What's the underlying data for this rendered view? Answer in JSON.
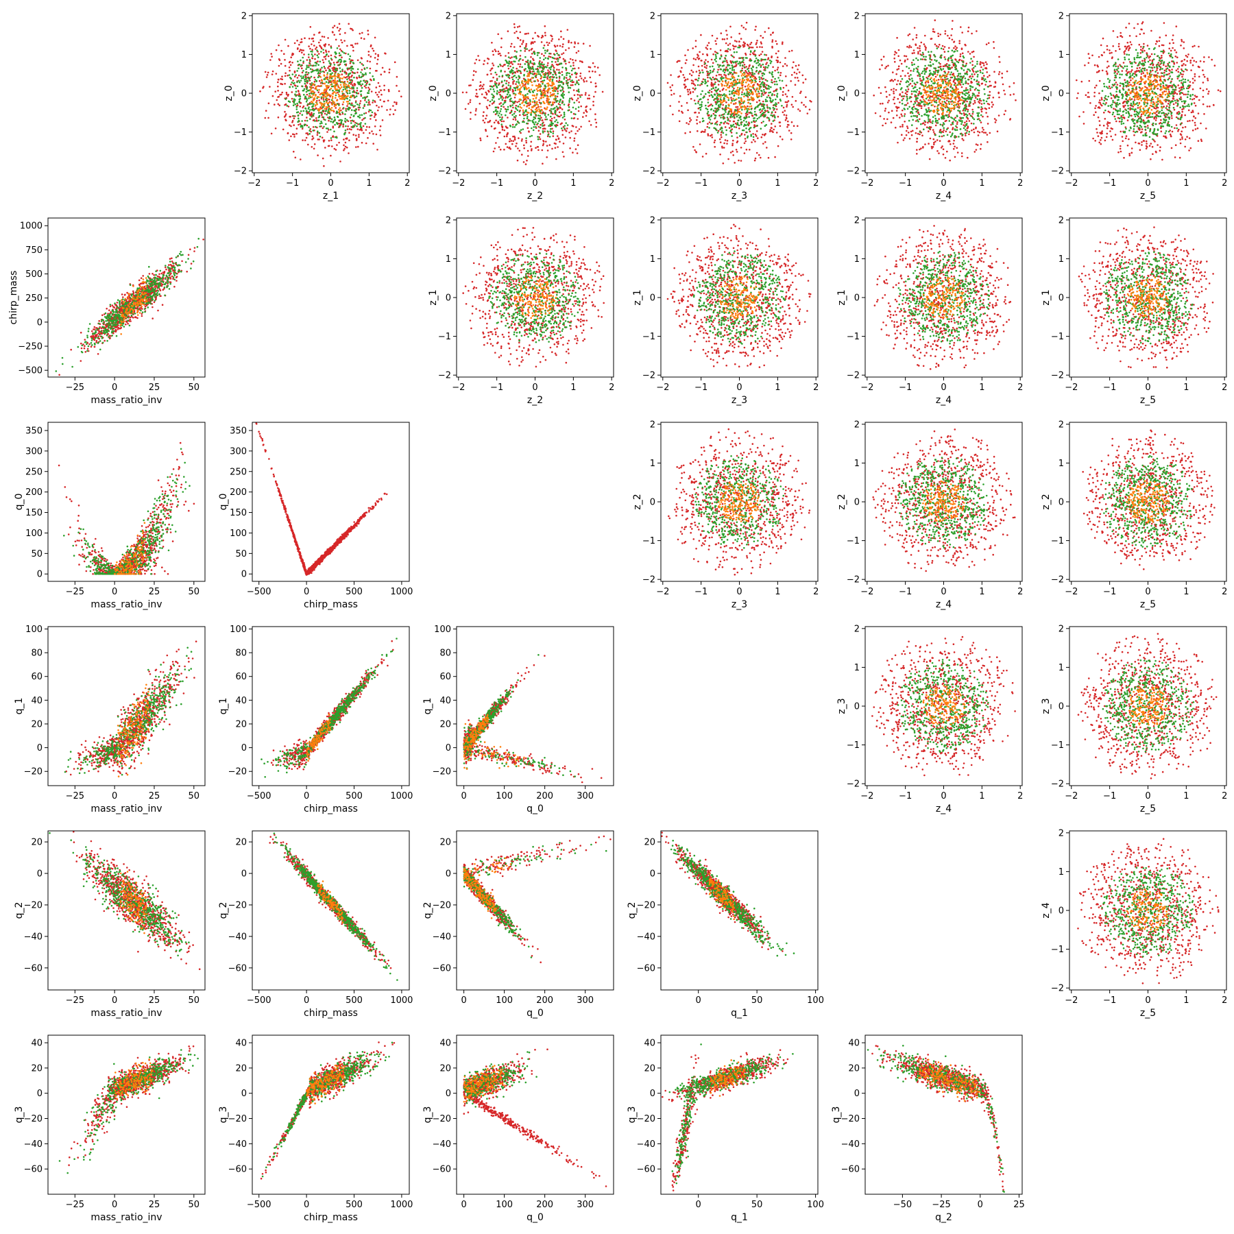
{
  "chart_data": {
    "type": "scatter",
    "layout": "corner-pair-grid",
    "grid_size": 6,
    "point_series": [
      {
        "color": "#d62728"
      },
      {
        "color": "#2ca02c"
      },
      {
        "color": "#ff7f0e"
      }
    ],
    "variables": {
      "z_0": {
        "label": "z_0",
        "lim": [
          -2.05,
          2.05
        ],
        "ticks": [
          -2,
          -1,
          0,
          1,
          2
        ]
      },
      "z_1": {
        "label": "z_1",
        "lim": [
          -2.05,
          2.05
        ],
        "ticks": [
          -2,
          -1,
          0,
          1,
          2
        ]
      },
      "z_2": {
        "label": "z_2",
        "lim": [
          -2.05,
          2.05
        ],
        "ticks": [
          -2,
          -1,
          0,
          1,
          2
        ]
      },
      "z_3": {
        "label": "z_3",
        "lim": [
          -2.05,
          2.05
        ],
        "ticks": [
          -2,
          -1,
          0,
          1,
          2
        ]
      },
      "z_4": {
        "label": "z_4",
        "lim": [
          -2.05,
          2.05
        ],
        "ticks": [
          -2,
          -1,
          0,
          1,
          2
        ]
      },
      "z_5": {
        "label": "z_5",
        "lim": [
          -2.05,
          2.05
        ],
        "ticks": [
          -2,
          -1,
          0,
          1,
          2
        ]
      },
      "mass_ratio_inv": {
        "label": "mass_ratio_inv",
        "lim": [
          -42,
          57
        ],
        "ticks": [
          -25,
          0,
          25,
          50
        ]
      },
      "chirp_mass": {
        "label": "chirp_mass",
        "lim": [
          -570,
          1080
        ],
        "ticks": [
          -500,
          -250,
          0,
          250,
          500,
          750,
          1000
        ],
        "x_ticks": [
          -500,
          0,
          500,
          1000
        ]
      },
      "q_0": {
        "label": "q_0",
        "lim": [
          -18,
          370
        ],
        "ticks": [
          0,
          50,
          100,
          150,
          200,
          250,
          300,
          350
        ],
        "x_ticks": [
          0,
          100,
          200,
          300
        ]
      },
      "q_1": {
        "label": "q_1",
        "lim": [
          -32,
          102
        ],
        "ticks": [
          -20,
          0,
          20,
          40,
          60,
          80,
          100
        ],
        "x_ticks": [
          0,
          50,
          100
        ]
      },
      "q_2": {
        "label": "q_2",
        "lim": [
          -74,
          27
        ],
        "ticks": [
          -60,
          -40,
          -20,
          0,
          20
        ],
        "x_ticks": [
          -50,
          -25,
          0,
          25
        ]
      },
      "q_3": {
        "label": "q_3",
        "lim": [
          -80,
          46
        ],
        "ticks": [
          -60,
          -40,
          -20,
          0,
          20,
          40
        ]
      }
    },
    "panels": [
      {
        "row": 0,
        "col": 1,
        "x": "z_1",
        "y": "z_0",
        "pattern": "gaussian",
        "seed": 11
      },
      {
        "row": 0,
        "col": 2,
        "x": "z_2",
        "y": "z_0",
        "pattern": "gaussian",
        "seed": 12
      },
      {
        "row": 0,
        "col": 3,
        "x": "z_3",
        "y": "z_0",
        "pattern": "gaussian",
        "seed": 13
      },
      {
        "row": 0,
        "col": 4,
        "x": "z_4",
        "y": "z_0",
        "pattern": "gaussian",
        "seed": 14
      },
      {
        "row": 0,
        "col": 5,
        "x": "z_5",
        "y": "z_0",
        "pattern": "gaussian",
        "seed": 15
      },
      {
        "row": 1,
        "col": 0,
        "x": "mass_ratio_inv",
        "y": "chirp_mass",
        "pattern": "linear",
        "slope": 13.5,
        "intercept": 30,
        "x_center": 12,
        "x_spread": 14,
        "y_noise": 75,
        "seed": 21
      },
      {
        "row": 1,
        "col": 2,
        "x": "z_2",
        "y": "z_1",
        "pattern": "gaussian",
        "seed": 22
      },
      {
        "row": 1,
        "col": 3,
        "x": "z_3",
        "y": "z_1",
        "pattern": "gaussian",
        "seed": 23
      },
      {
        "row": 1,
        "col": 4,
        "x": "z_4",
        "y": "z_1",
        "pattern": "gaussian",
        "seed": 24
      },
      {
        "row": 1,
        "col": 5,
        "x": "z_5",
        "y": "z_1",
        "pattern": "gaussian",
        "seed": 25
      },
      {
        "row": 2,
        "col": 0,
        "x": "mass_ratio_inv",
        "y": "q_0",
        "pattern": "vshape-scatter",
        "seed": 31
      },
      {
        "row": 2,
        "col": 1,
        "x": "chirp_mass",
        "y": "q_0",
        "pattern": "vshape-line",
        "seed": 32
      },
      {
        "row": 2,
        "col": 3,
        "x": "z_3",
        "y": "z_2",
        "pattern": "gaussian",
        "seed": 33
      },
      {
        "row": 2,
        "col": 4,
        "x": "z_4",
        "y": "z_2",
        "pattern": "gaussian",
        "seed": 34
      },
      {
        "row": 2,
        "col": 5,
        "x": "z_5",
        "y": "z_2",
        "pattern": "gaussian",
        "seed": 35
      },
      {
        "row": 3,
        "col": 0,
        "x": "mass_ratio_inv",
        "y": "q_1",
        "pattern": "bent-scatter",
        "seed": 41
      },
      {
        "row": 3,
        "col": 1,
        "x": "chirp_mass",
        "y": "q_1",
        "pattern": "bent-line",
        "seed": 42
      },
      {
        "row": 3,
        "col": 2,
        "x": "q_0",
        "y": "q_1",
        "pattern": "fork",
        "seed": 43
      },
      {
        "row": 3,
        "col": 4,
        "x": "z_4",
        "y": "z_3",
        "pattern": "gaussian",
        "seed": 44
      },
      {
        "row": 3,
        "col": 5,
        "x": "z_5",
        "y": "z_3",
        "pattern": "gaussian",
        "seed": 45
      },
      {
        "row": 4,
        "col": 0,
        "x": "mass_ratio_inv",
        "y": "q_2",
        "pattern": "linear",
        "slope": -0.82,
        "intercept": -8,
        "x_center": 12,
        "x_spread": 14,
        "y_noise": 7,
        "seed": 51
      },
      {
        "row": 4,
        "col": 1,
        "x": "chirp_mass",
        "y": "q_2",
        "pattern": "linear",
        "slope": -0.068,
        "intercept": -1,
        "x_center": 250,
        "x_spread": 220,
        "y_noise": 2.2,
        "seed": 52
      },
      {
        "row": 4,
        "col": 2,
        "x": "q_0",
        "y": "q_2",
        "pattern": "fork2",
        "seed": 53
      },
      {
        "row": 4,
        "col": 3,
        "x": "q_1",
        "y": "q_2",
        "pattern": "linear",
        "slope": -0.72,
        "intercept": 1,
        "x_center": 20,
        "x_spread": 18,
        "y_noise": 3.5,
        "seed": 54
      },
      {
        "row": 4,
        "col": 5,
        "x": "z_5",
        "y": "z_4",
        "pattern": "gaussian",
        "seed": 55
      },
      {
        "row": 5,
        "col": 0,
        "x": "mass_ratio_inv",
        "y": "q_3",
        "pattern": "curve-mr",
        "seed": 61
      },
      {
        "row": 5,
        "col": 1,
        "x": "chirp_mass",
        "y": "q_3",
        "pattern": "curve-cm",
        "seed": 62
      },
      {
        "row": 5,
        "col": 2,
        "x": "q_0",
        "y": "q_3",
        "pattern": "fork3",
        "seed": 63
      },
      {
        "row": 5,
        "col": 3,
        "x": "q_1",
        "y": "q_3",
        "pattern": "curve-q1",
        "seed": 64
      },
      {
        "row": 5,
        "col": 4,
        "x": "q_2",
        "y": "q_3",
        "pattern": "curve-q2",
        "seed": 65
      }
    ]
  }
}
